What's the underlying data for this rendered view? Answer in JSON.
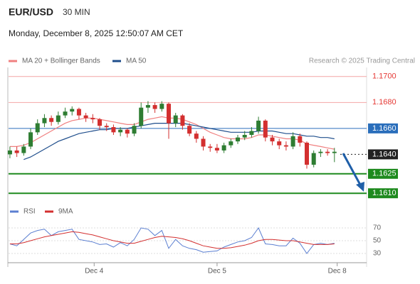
{
  "header": {
    "symbol": "EUR/USD",
    "timeframe": "30 MIN",
    "timestamp": "Monday, December 8, 2025 12:50:07 AM CET",
    "copyright": "Research © 2025 Trading Central"
  },
  "chart_data": [
    {
      "type": "candlestick",
      "up_color": "#2e7d32",
      "down_color": "#d32f2f",
      "ylim": [
        1.1603,
        1.1707
      ],
      "xlim": [
        -0.2,
        51.66
      ],
      "levels": [
        {
          "value": 1.17,
          "label": "1.1700",
          "color": "#e53935",
          "boxed": false
        },
        {
          "value": 1.168,
          "label": "1.1680",
          "color": "#e53935",
          "boxed": false
        },
        {
          "value": 1.166,
          "label": "1.1660",
          "color": "#2a6ebb",
          "boxed": true
        },
        {
          "value": 1.164,
          "label": "1.1640",
          "color": "#222222",
          "boxed": true
        },
        {
          "value": 1.1625,
          "label": "1.1625",
          "color": "#1e8a1e",
          "boxed": true
        },
        {
          "value": 1.161,
          "label": "1.1610",
          "color": "#1e8a1e",
          "boxed": true
        }
      ],
      "ohlc": [
        [
          1.164,
          1.1646,
          1.1637,
          1.1643
        ],
        [
          1.1643,
          1.1646,
          1.1638,
          1.1641
        ],
        [
          1.1641,
          1.1648,
          1.1639,
          1.1646
        ],
        [
          1.1646,
          1.166,
          1.1644,
          1.1657
        ],
        [
          1.1657,
          1.1667,
          1.1655,
          1.1664
        ],
        [
          1.1664,
          1.1671,
          1.1661,
          1.1668
        ],
        [
          1.1668,
          1.167,
          1.1662,
          1.1665
        ],
        [
          1.1665,
          1.1673,
          1.1663,
          1.167
        ],
        [
          1.167,
          1.1676,
          1.1668,
          1.1673
        ],
        [
          1.1673,
          1.1677,
          1.167,
          1.1675
        ],
        [
          1.1675,
          1.1676,
          1.1667,
          1.167
        ],
        [
          1.167,
          1.1672,
          1.1665,
          1.1668
        ],
        [
          1.1668,
          1.1671,
          1.1664,
          1.1667
        ],
        [
          1.1667,
          1.1668,
          1.1659,
          1.1662
        ],
        [
          1.1662,
          1.1664,
          1.1658,
          1.1661
        ],
        [
          1.1661,
          1.1663,
          1.1655,
          1.1657
        ],
        [
          1.1657,
          1.1661,
          1.1654,
          1.1659
        ],
        [
          1.1659,
          1.166,
          1.1653,
          1.1656
        ],
        [
          1.1656,
          1.1664,
          1.1654,
          1.1662
        ],
        [
          1.1662,
          1.168,
          1.166,
          1.1676
        ],
        [
          1.1676,
          1.1681,
          1.1672,
          1.1678
        ],
        [
          1.1678,
          1.168,
          1.1672,
          1.1675
        ],
        [
          1.1675,
          1.1681,
          1.1673,
          1.1679
        ],
        [
          1.1679,
          1.168,
          1.1652,
          1.1664
        ],
        [
          1.1664,
          1.1672,
          1.1661,
          1.167
        ],
        [
          1.167,
          1.1671,
          1.1659,
          1.1662
        ],
        [
          1.1662,
          1.1664,
          1.1654,
          1.1656
        ],
        [
          1.1656,
          1.1658,
          1.1649,
          1.1652
        ],
        [
          1.1652,
          1.1654,
          1.1643,
          1.1646
        ],
        [
          1.1646,
          1.1648,
          1.1642,
          1.1645
        ],
        [
          1.1645,
          1.1648,
          1.1641,
          1.1643
        ],
        [
          1.1643,
          1.1649,
          1.1641,
          1.1647
        ],
        [
          1.1647,
          1.1652,
          1.1645,
          1.165
        ],
        [
          1.165,
          1.1655,
          1.1648,
          1.1653
        ],
        [
          1.1653,
          1.1658,
          1.1651,
          1.1655
        ],
        [
          1.1655,
          1.1661,
          1.1653,
          1.1658
        ],
        [
          1.1658,
          1.1669,
          1.1656,
          1.1666
        ],
        [
          1.1666,
          1.1667,
          1.165,
          1.1653
        ],
        [
          1.1653,
          1.1655,
          1.1647,
          1.165
        ],
        [
          1.165,
          1.1652,
          1.1644,
          1.1647
        ],
        [
          1.1647,
          1.165,
          1.1643,
          1.1646
        ],
        [
          1.1646,
          1.1657,
          1.1644,
          1.1654
        ],
        [
          1.1654,
          1.1656,
          1.1646,
          1.1649
        ],
        [
          1.1649,
          1.165,
          1.1629,
          1.1632
        ],
        [
          1.1632,
          1.1643,
          1.163,
          1.1641
        ],
        [
          1.1641,
          1.1644,
          1.1638,
          1.1642
        ],
        [
          1.1642,
          1.1644,
          1.1639,
          1.1641
        ],
        [
          1.1641,
          1.1645,
          1.1634,
          1.1642
        ]
      ],
      "series": [
        {
          "name": "MA 20 + Bollinger Bands",
          "color": "#f08080",
          "values": [
            1.1646,
            1.1646,
            1.1647,
            1.1649,
            1.1652,
            1.1655,
            1.1658,
            1.1661,
            1.1664,
            1.1666,
            1.1667,
            1.1668,
            1.1668,
            1.1667,
            1.1666,
            1.1665,
            1.1664,
            1.1663,
            1.1663,
            1.1665,
            1.1667,
            1.1668,
            1.1669,
            1.1668,
            1.1668,
            1.1667,
            1.1665,
            1.1663,
            1.166,
            1.1657,
            1.1655,
            1.1653,
            1.1652,
            1.1652,
            1.1652,
            1.1653,
            1.1655,
            1.1655,
            1.1654,
            1.1653,
            1.1652,
            1.1652,
            1.1651,
            1.1648,
            1.1647,
            1.1646,
            1.1645,
            1.1644
          ]
        },
        {
          "name": "MA 50",
          "color": "#1f4e8c",
          "values": [
            null,
            null,
            1.1636,
            1.1638,
            1.1641,
            1.1644,
            1.1647,
            1.165,
            1.1652,
            1.1654,
            1.1656,
            1.1657,
            1.1658,
            1.1659,
            1.1659,
            1.166,
            1.166,
            1.166,
            1.1661,
            1.1662,
            1.1663,
            1.1664,
            1.1664,
            1.1664,
            1.1664,
            1.1664,
            1.1663,
            1.1662,
            1.1661,
            1.166,
            1.1659,
            1.1658,
            1.1657,
            1.1657,
            1.1657,
            1.1657,
            1.1658,
            1.1658,
            1.1658,
            1.1657,
            1.1656,
            1.1656,
            1.1655,
            1.1654,
            1.1654,
            1.1653,
            1.1653,
            1.1652
          ]
        }
      ]
    },
    {
      "type": "line",
      "ylim": [
        20,
        80
      ],
      "yticks": [
        30,
        50,
        70
      ],
      "xlim": [
        -0.2,
        51.66
      ],
      "xticks": [
        {
          "value": 12.2,
          "label": "Dec 4"
        },
        {
          "value": 30,
          "label": "Dec 5"
        },
        {
          "value": 47.4,
          "label": "Dec 8"
        }
      ],
      "series": [
        {
          "name": "RSI",
          "color": "#5b7fd1",
          "values": [
            45,
            42,
            52,
            62,
            66,
            68,
            58,
            64,
            66,
            68,
            52,
            50,
            48,
            44,
            45,
            40,
            47,
            42,
            52,
            70,
            68,
            58,
            66,
            38,
            52,
            42,
            38,
            36,
            32,
            33,
            34,
            40,
            44,
            48,
            50,
            55,
            70,
            45,
            44,
            42,
            42,
            54,
            46,
            30,
            44,
            46,
            44,
            46
          ]
        },
        {
          "name": "9MA",
          "color": "#d32f2f",
          "values": [
            45,
            45,
            47,
            50,
            53,
            56,
            58,
            60,
            62,
            64,
            63,
            61,
            59,
            56,
            53,
            50,
            48,
            46,
            46,
            49,
            52,
            55,
            57,
            56,
            55,
            53,
            50,
            46,
            42,
            40,
            38,
            38,
            39,
            41,
            43,
            46,
            50,
            52,
            52,
            51,
            50,
            50,
            48,
            46,
            44,
            44,
            44,
            45
          ]
        }
      ]
    }
  ]
}
